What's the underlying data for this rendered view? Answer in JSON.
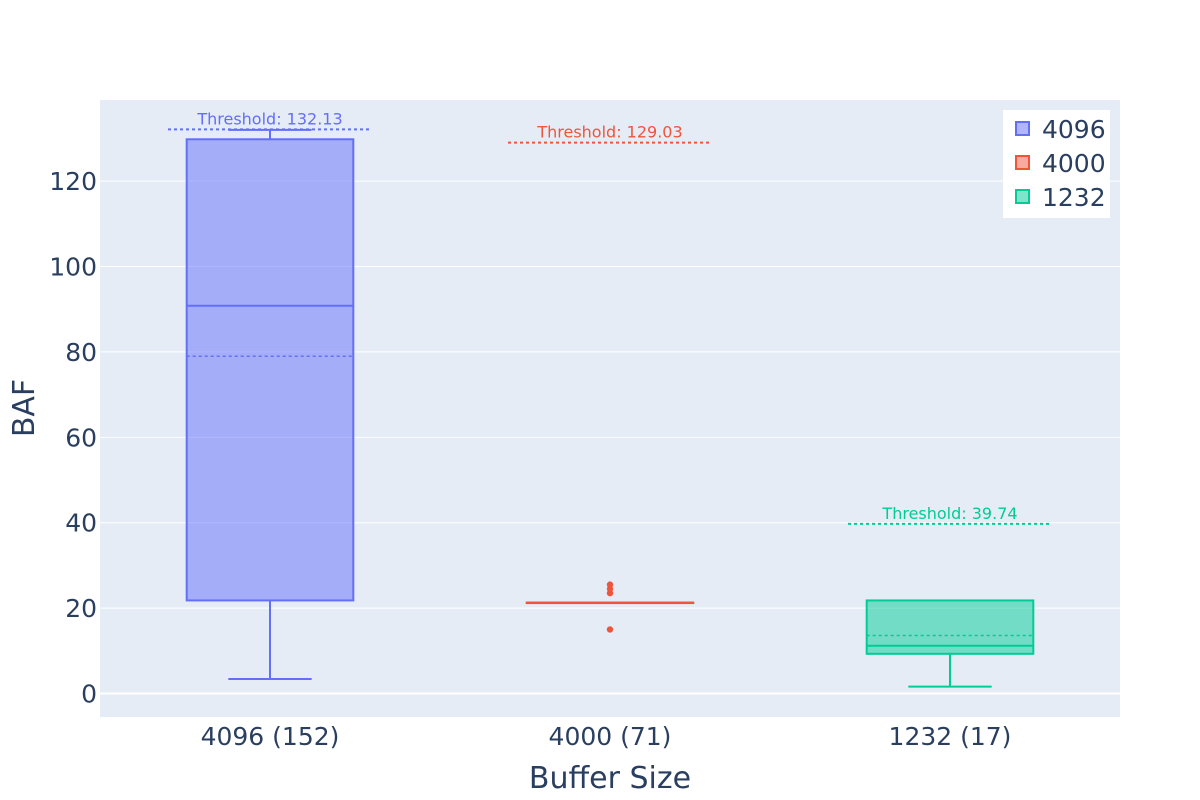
{
  "chart_data": {
    "type": "box",
    "title": "",
    "xlabel": "Buffer Size",
    "ylabel": "BAF",
    "ylim": [
      -5.5,
      139
    ],
    "yticks": [
      0,
      20,
      40,
      60,
      80,
      100,
      120
    ],
    "grid": true,
    "legend_position": "top-right",
    "categories": [
      "4096 (152)",
      "4000 (71)",
      "1232 (17)"
    ],
    "series": [
      {
        "name": "4096",
        "category": "4096 (152)",
        "color": "#636efa",
        "min": 3.4,
        "q1": 21.8,
        "median": 90.8,
        "mean": 79.0,
        "q3": 129.8,
        "max": 132.0,
        "outliers": [],
        "threshold": 132.13,
        "threshold_label": "Threshold: 132.13"
      },
      {
        "name": "4000",
        "category": "4000 (71)",
        "color": "#ef553b",
        "min": 21.3,
        "q1": 21.3,
        "median": 21.3,
        "mean": 21.3,
        "q3": 21.3,
        "max": 21.3,
        "outliers": [
          15.0,
          23.5,
          24.5,
          25.5
        ],
        "threshold": 129.03,
        "threshold_label": "Threshold: 129.03"
      },
      {
        "name": "1232",
        "category": "1232 (17)",
        "color": "#00cc96",
        "min": 1.6,
        "q1": 9.3,
        "median": 11.2,
        "mean": 13.6,
        "q3": 21.8,
        "max": 21.8,
        "outliers": [],
        "threshold": 39.74,
        "threshold_label": "Threshold: 39.74"
      }
    ]
  }
}
